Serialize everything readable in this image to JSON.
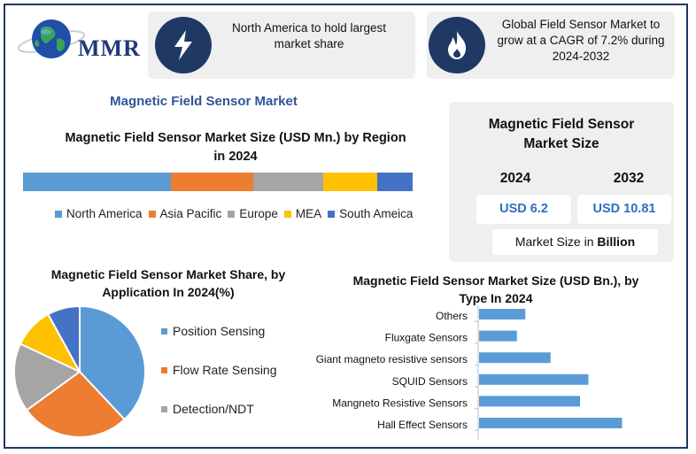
{
  "brand": {
    "logo_text": "MMR"
  },
  "top_cards": [
    {
      "icon": "lightning-icon",
      "text": "North America to hold largest market share"
    },
    {
      "icon": "flame-icon",
      "text": "Global Field Sensor Market to grow at a CAGR of 7.2% during 2024-2032"
    }
  ],
  "report_title": "Magnetic Field Sensor Market",
  "market_size": {
    "title": "Magnetic Field Sensor Market Size",
    "year_1": "2024",
    "year_2": "2032",
    "value_1": "USD 6.2",
    "value_2": "USD 10.81",
    "unit_prefix": "Market Size in ",
    "unit_bold": "Billion"
  },
  "colors": {
    "navy": "#1f3864",
    "accent_blue": "#2e6fc0",
    "title_blue": "#2e5597",
    "bar_blue": "#5b9bd5"
  },
  "chart_data": [
    {
      "type": "bar",
      "orientation": "horizontal-stacked",
      "title": "Magnetic Field Sensor Market Size (USD Mn.) by Region in 2024",
      "series": [
        {
          "name": "North America",
          "value": 38,
          "color": "#5b9bd5"
        },
        {
          "name": "Asia Pacific",
          "value": 21,
          "color": "#ed7d31"
        },
        {
          "name": "Europe",
          "value": 18,
          "color": "#a5a5a5"
        },
        {
          "name": "MEA",
          "value": 14,
          "color": "#ffc000"
        },
        {
          "name": "South Ameica",
          "value": 9,
          "color": "#4472c4"
        }
      ]
    },
    {
      "type": "pie",
      "title": "Magnetic Field Sensor Market Share, by Application In 2024(%)",
      "slices": [
        {
          "name": "Position Sensing",
          "value": 38,
          "color": "#5b9bd5",
          "legend": true
        },
        {
          "name": "Flow Rate Sensing",
          "value": 27,
          "color": "#ed7d31",
          "legend": true
        },
        {
          "name": "Detection/NDT",
          "value": 17,
          "color": "#a5a5a5",
          "legend": true
        },
        {
          "name": "",
          "value": 10,
          "color": "#ffc000",
          "legend": false
        },
        {
          "name": "",
          "value": 8,
          "color": "#4472c4",
          "legend": false
        }
      ]
    },
    {
      "type": "bar",
      "orientation": "horizontal",
      "title": "Magnetic Field Sensor Market Size (USD Bn.), by Type In 2024",
      "categories": [
        "Others",
        "Fluxgate Sensors",
        "Giant magneto resistive sensors",
        "SQUID Sensors",
        "Mangneto Resistive Sensors",
        "Hall Effect Sensors"
      ],
      "values": [
        0.55,
        0.45,
        0.85,
        1.3,
        1.2,
        1.7
      ],
      "xlim": [
        0,
        2
      ],
      "color": "#5b9bd5",
      "grid": false
    }
  ]
}
